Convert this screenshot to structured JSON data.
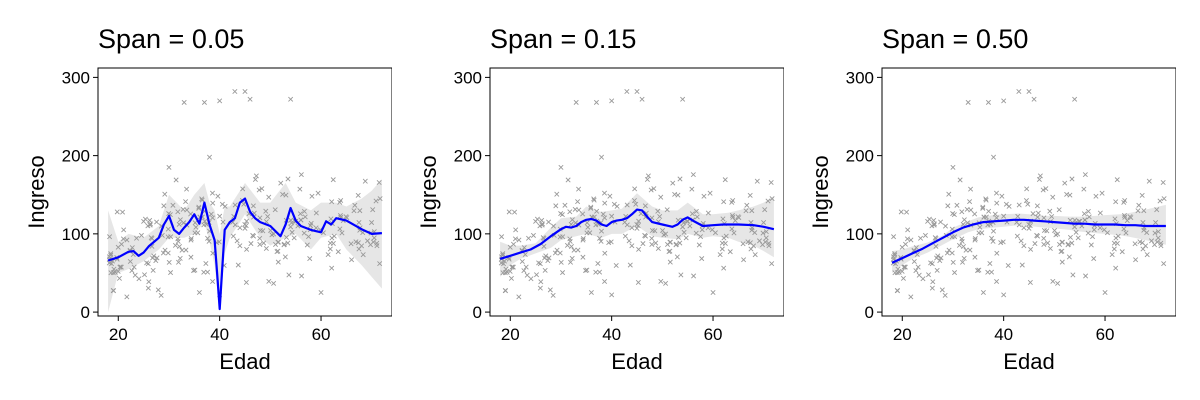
{
  "colors": {
    "smooth_line": "#0000ff",
    "confidence_band": "#e6e6e6",
    "points": "#999999",
    "frame": "#000000"
  },
  "chart_data": [
    {
      "type": "scatter",
      "title": "Span = 0.05",
      "xlabel": "Edad",
      "ylabel": "Ingreso",
      "xlim": [
        16,
        74
      ],
      "ylim": [
        -5,
        312
      ],
      "xticks": [
        20,
        40,
        60
      ],
      "yticks": [
        0,
        100,
        200,
        300
      ],
      "grid": false,
      "legend": "none",
      "point_marker": "x",
      "smooth": {
        "method": "loess",
        "x": [
          18,
          20,
          22,
          23,
          24,
          25,
          26,
          28,
          29,
          30,
          31,
          32,
          33,
          34,
          35,
          36,
          37,
          38,
          39,
          39.5,
          40,
          40.5,
          41,
          42,
          43,
          44,
          45,
          46,
          47,
          48,
          50,
          52,
          53,
          54,
          55,
          56,
          58,
          60,
          61,
          62,
          63,
          65,
          68,
          70,
          72
        ],
        "y": [
          66,
          70,
          77,
          78,
          72,
          76,
          84,
          95,
          112,
          123,
          105,
          100,
          108,
          115,
          125,
          113,
          140,
          112,
          92,
          50,
          4,
          55,
          105,
          115,
          120,
          140,
          145,
          128,
          120,
          115,
          110,
          97,
          112,
          133,
          117,
          110,
          105,
          102,
          116,
          112,
          120,
          117,
          106,
          100,
          101
        ]
      },
      "band": {
        "x": [
          18,
          20,
          22,
          25,
          28,
          30,
          33,
          35,
          37,
          38,
          39,
          40,
          41,
          42,
          45,
          48,
          50,
          53,
          55,
          58,
          60,
          63,
          65,
          68,
          70,
          72
        ],
        "lower": [
          0,
          50,
          55,
          65,
          80,
          95,
          95,
          100,
          115,
          90,
          60,
          0,
          75,
          95,
          125,
          95,
          85,
          95,
          100,
          80,
          95,
          100,
          80,
          60,
          45,
          30
        ],
        "upper": [
          130,
          90,
          100,
          95,
          110,
          150,
          130,
          150,
          165,
          140,
          130,
          100,
          135,
          135,
          165,
          140,
          140,
          165,
          140,
          130,
          140,
          140,
          135,
          145,
          155,
          170
        ]
      },
      "points_seed": 7
    },
    {
      "type": "scatter",
      "title": "Span = 0.15",
      "xlabel": "Edad",
      "ylabel": "Ingreso",
      "xlim": [
        16,
        74
      ],
      "ylim": [
        -5,
        312
      ],
      "xticks": [
        20,
        40,
        60
      ],
      "yticks": [
        0,
        100,
        200,
        300
      ],
      "grid": false,
      "legend": "none",
      "point_marker": "x",
      "smooth": {
        "method": "loess",
        "x": [
          18,
          20,
          22,
          24,
          26,
          28,
          30,
          31,
          32,
          33,
          34,
          35,
          36,
          37,
          38,
          39,
          40,
          41,
          42,
          43,
          44,
          45,
          46,
          47,
          48,
          50,
          52,
          53,
          54,
          55,
          56,
          58,
          60,
          62,
          65,
          68,
          70,
          72
        ],
        "y": [
          68,
          72,
          76,
          80,
          87,
          97,
          106,
          109,
          108,
          110,
          115,
          118,
          119,
          117,
          112,
          110,
          115,
          117,
          118,
          120,
          125,
          131,
          130,
          122,
          115,
          112,
          109,
          112,
          118,
          121,
          117,
          110,
          111,
          112,
          112,
          111,
          109,
          106
        ]
      },
      "band": {
        "x": [
          18,
          20,
          22,
          25,
          28,
          30,
          33,
          35,
          38,
          40,
          42,
          45,
          48,
          50,
          53,
          55,
          58,
          60,
          63,
          65,
          68,
          70,
          72
        ],
        "lower": [
          45,
          60,
          68,
          75,
          82,
          92,
          97,
          100,
          95,
          100,
          100,
          110,
          97,
          95,
          93,
          100,
          95,
          97,
          95,
          90,
          85,
          78,
          70
        ],
        "upper": [
          90,
          85,
          85,
          88,
          108,
          120,
          122,
          135,
          128,
          130,
          132,
          152,
          135,
          130,
          130,
          140,
          125,
          125,
          127,
          130,
          135,
          140,
          148
        ]
      },
      "points_seed": 7
    },
    {
      "type": "scatter",
      "title": "Span = 0.50",
      "xlabel": "Edad",
      "ylabel": "Ingreso",
      "xlim": [
        16,
        74
      ],
      "ylim": [
        -5,
        312
      ],
      "xticks": [
        20,
        40,
        60
      ],
      "yticks": [
        0,
        100,
        200,
        300
      ],
      "grid": false,
      "legend": "none",
      "point_marker": "x",
      "smooth": {
        "method": "loess",
        "x": [
          18,
          20,
          22,
          24,
          26,
          28,
          30,
          32,
          34,
          36,
          38,
          40,
          42,
          44,
          46,
          48,
          50,
          52,
          54,
          56,
          58,
          60,
          62,
          64,
          66,
          68,
          70,
          72
        ],
        "y": [
          63,
          69,
          75,
          81,
          88,
          95,
          102,
          108,
          112,
          115,
          116,
          117,
          118,
          118,
          117,
          116,
          115,
          114,
          113,
          113,
          112,
          112,
          112,
          111,
          111,
          110,
          110,
          110
        ]
      },
      "band": {
        "x": [
          18,
          20,
          22,
          25,
          28,
          30,
          33,
          35,
          38,
          40,
          43,
          45,
          48,
          50,
          53,
          55,
          58,
          60,
          63,
          65,
          68,
          70,
          72
        ],
        "lower": [
          50,
          60,
          68,
          76,
          86,
          93,
          102,
          106,
          108,
          109,
          111,
          110,
          108,
          107,
          105,
          103,
          101,
          100,
          98,
          96,
          92,
          89,
          86
        ],
        "upper": [
          78,
          80,
          84,
          89,
          98,
          108,
          116,
          121,
          124,
          125,
          126,
          125,
          123,
          123,
          122,
          122,
          123,
          124,
          125,
          127,
          131,
          134,
          137
        ]
      },
      "points_seed": 7
    }
  ]
}
